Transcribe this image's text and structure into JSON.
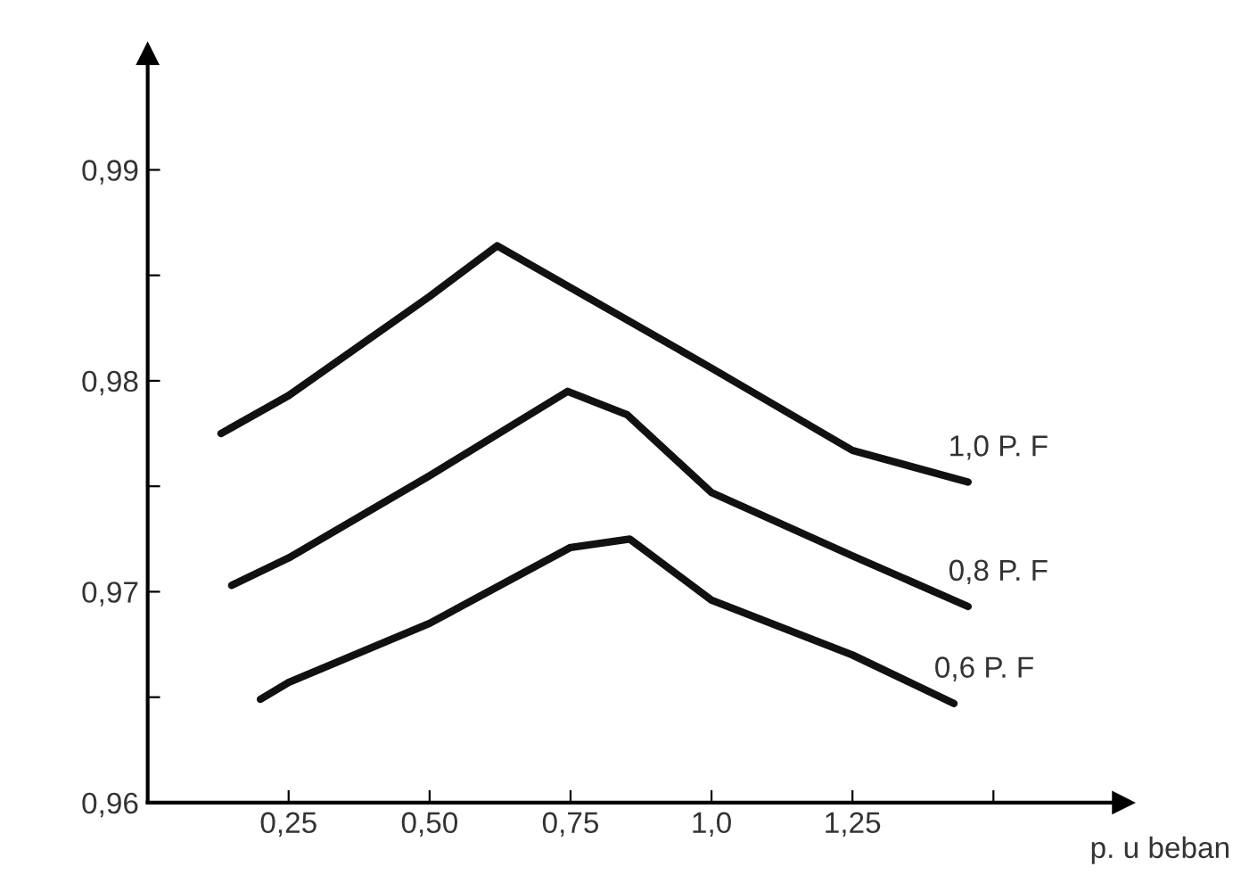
{
  "chart_data": {
    "type": "line",
    "xlabel": "p. u beban",
    "xlim": [
      0,
      1.73
    ],
    "ylim": [
      0.96,
      0.9955
    ],
    "xticks": [
      {
        "value": 0.25,
        "label": "0,25"
      },
      {
        "value": 0.5,
        "label": "0,50"
      },
      {
        "value": 0.75,
        "label": "0,75"
      },
      {
        "value": 1.0,
        "label": "1,0"
      },
      {
        "value": 1.25,
        "label": "1,25"
      },
      {
        "value": 1.5,
        "label": null
      }
    ],
    "yticks": [
      {
        "value": 0.96,
        "label": "0,96"
      },
      {
        "value": 0.965,
        "label": null
      },
      {
        "value": 0.97,
        "label": "0,97"
      },
      {
        "value": 0.975,
        "label": null
      },
      {
        "value": 0.98,
        "label": "0,98"
      },
      {
        "value": 0.985,
        "label": null
      },
      {
        "value": 0.99,
        "label": "0,99"
      }
    ],
    "grid": false,
    "legend": false,
    "marker": "none",
    "line_style": "solid",
    "series": [
      {
        "name": "1,0 P. F",
        "color": "#111111",
        "x": [
          0.13,
          0.25,
          0.5,
          0.62,
          1.0,
          1.25,
          1.455
        ],
        "values": [
          0.9775,
          0.9793,
          0.984,
          0.9864,
          0.9806,
          0.9767,
          0.9752
        ]
      },
      {
        "name": "0,8 P. F",
        "color": "#111111",
        "x": [
          0.149,
          0.25,
          0.5,
          0.745,
          0.85,
          1.0,
          1.25,
          1.455
        ],
        "values": [
          0.9703,
          0.9716,
          0.9755,
          0.9795,
          0.9784,
          0.9747,
          0.9717,
          0.9693
        ]
      },
      {
        "name": "0,6 P. F",
        "color": "#111111",
        "x": [
          0.2,
          0.25,
          0.5,
          0.75,
          0.855,
          1.0,
          1.25,
          1.43
        ],
        "values": [
          0.9649,
          0.9657,
          0.9685,
          0.9721,
          0.9725,
          0.9696,
          0.967,
          0.9647
        ]
      }
    ]
  }
}
